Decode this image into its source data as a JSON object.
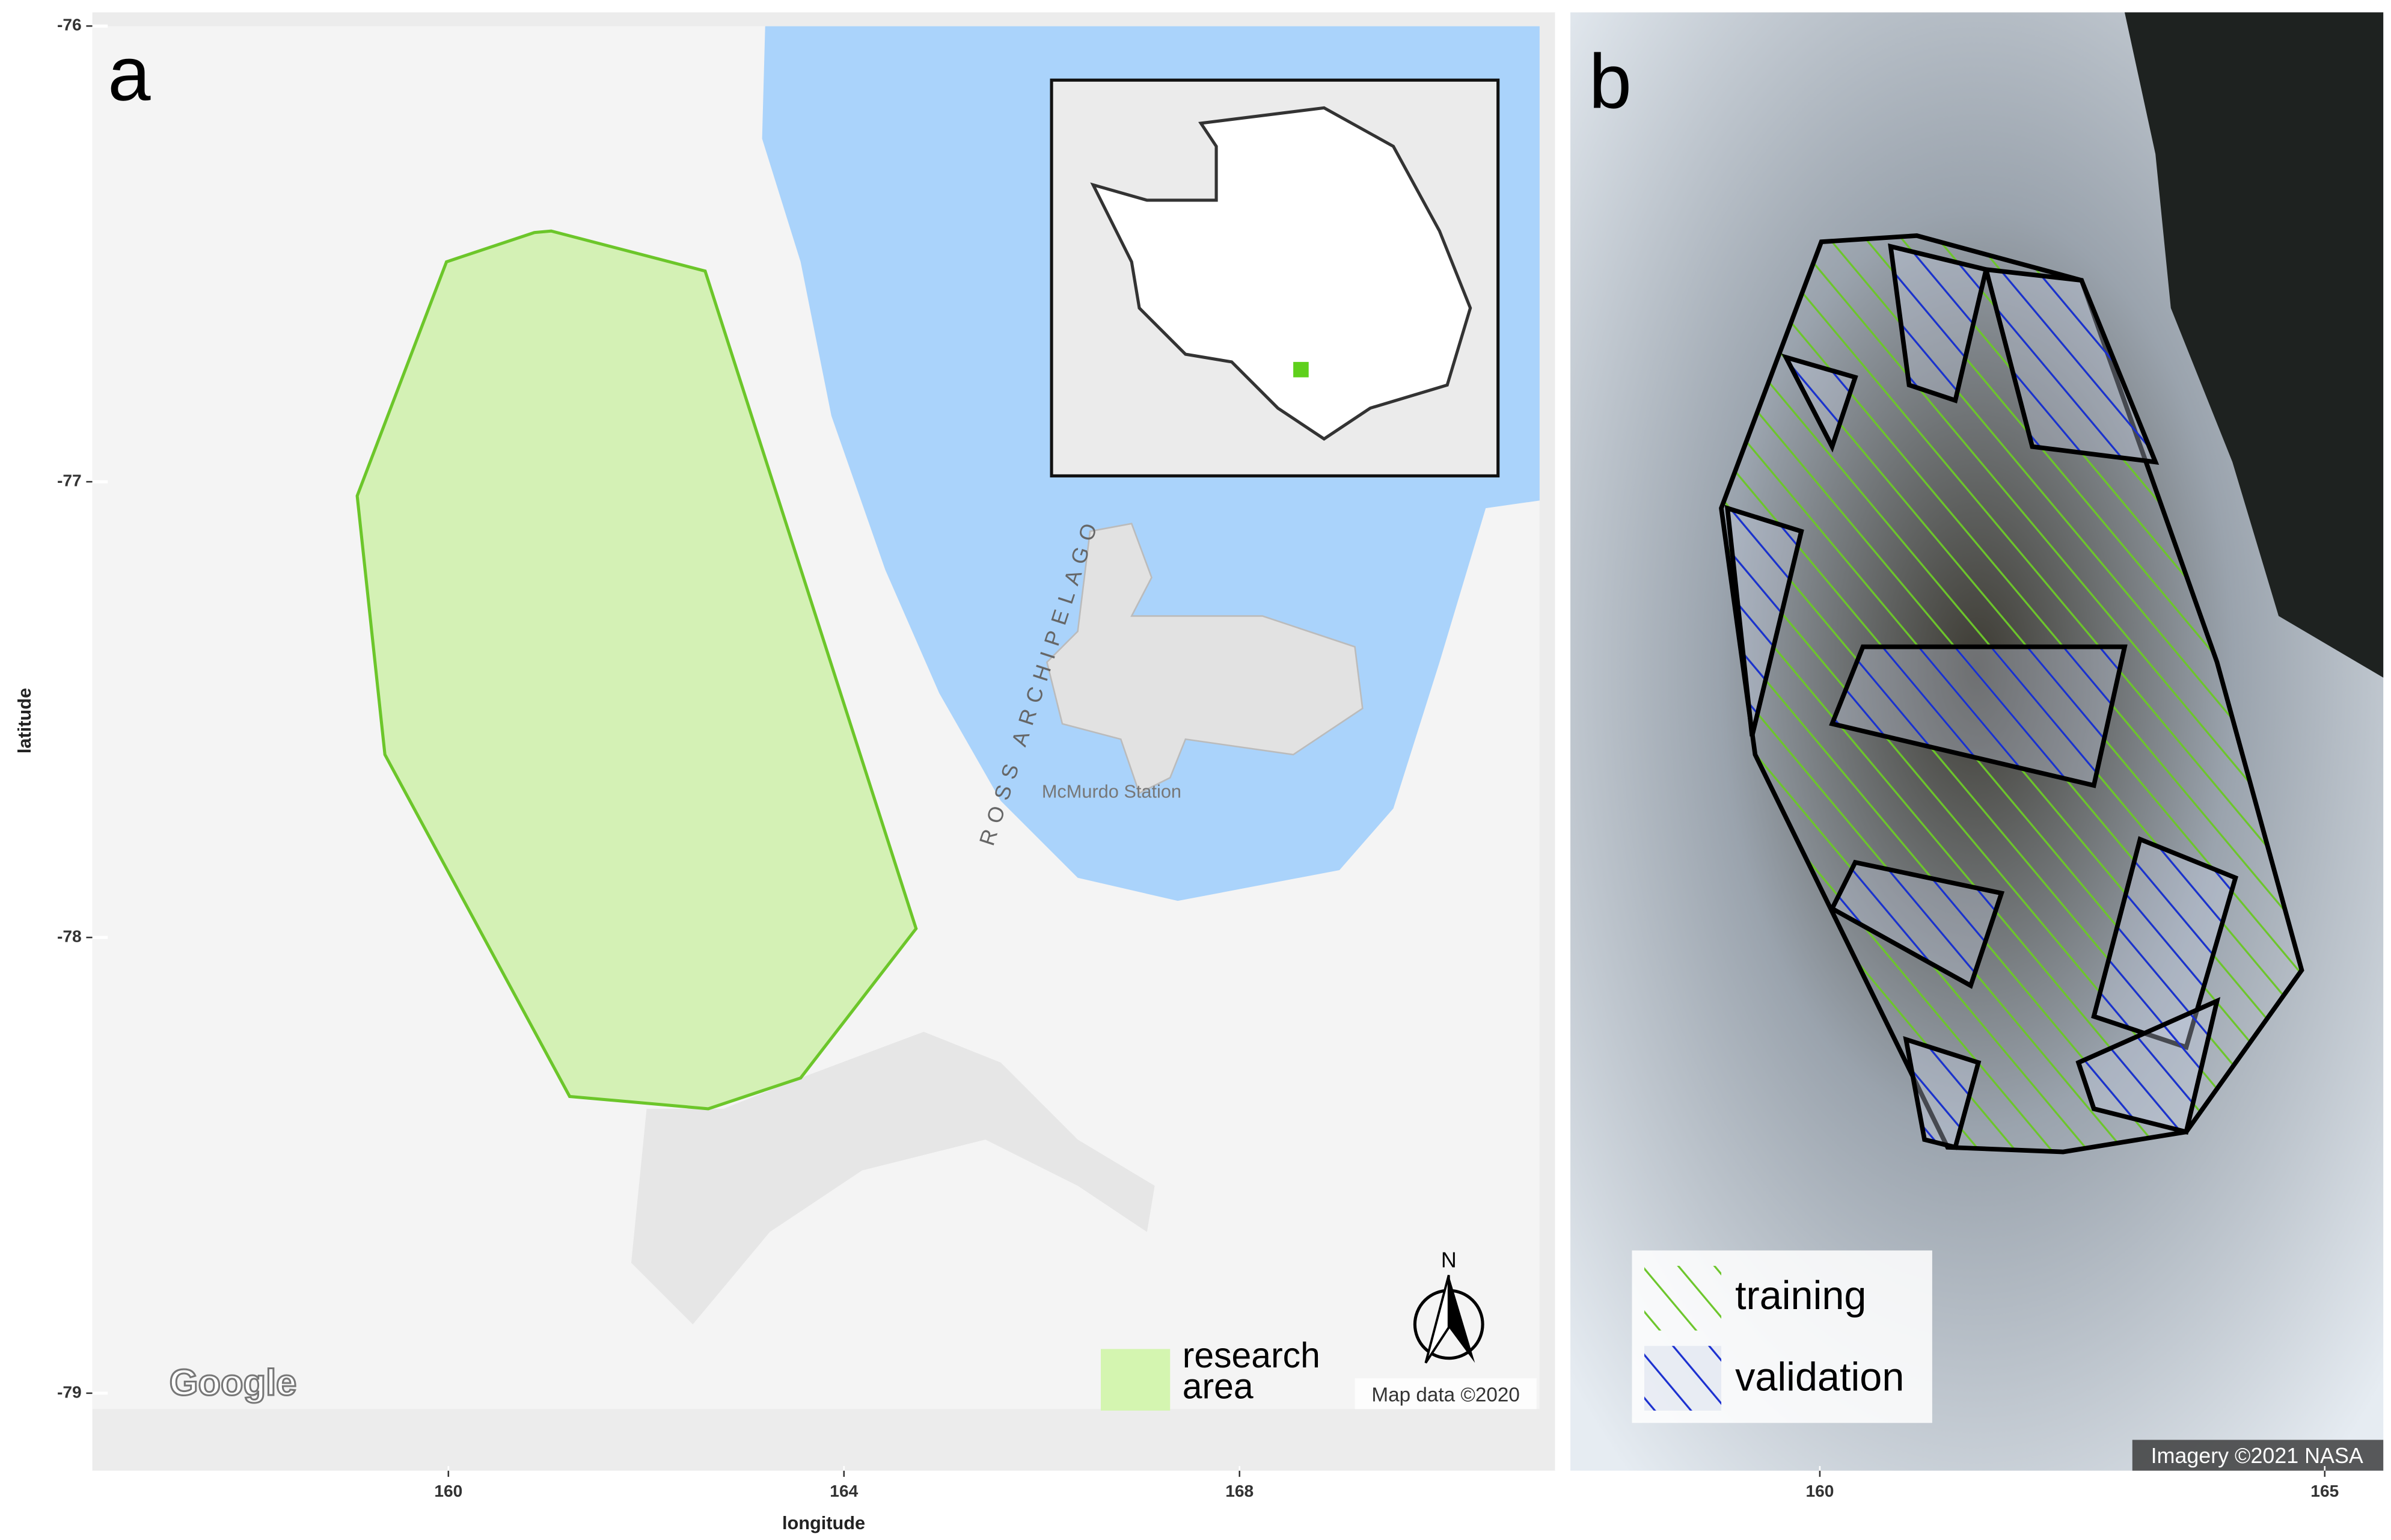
{
  "panel_a": {
    "label": "a",
    "xlabel": "longitude",
    "ylabel": "latitude",
    "xlim": [
      156.4,
      171.19
    ],
    "ylim": [
      -79.17,
      -75.97
    ],
    "xticks": [
      160,
      164,
      168
    ],
    "yticks": [
      -76,
      -77,
      -78,
      -79
    ],
    "sea_label": "ROSS ARCHIPELAGO",
    "station_label": "McMurdo Station",
    "provider": "Google",
    "legend": "research area",
    "attribution": "Map data ©2020",
    "north": "N"
  },
  "panel_b": {
    "label": "b",
    "xlim": [
      157.53,
      165.58
    ],
    "xticks": [
      160,
      165
    ],
    "legend": [
      "training",
      "validation"
    ],
    "attribution": "Imagery ©2021 NASA"
  }
}
